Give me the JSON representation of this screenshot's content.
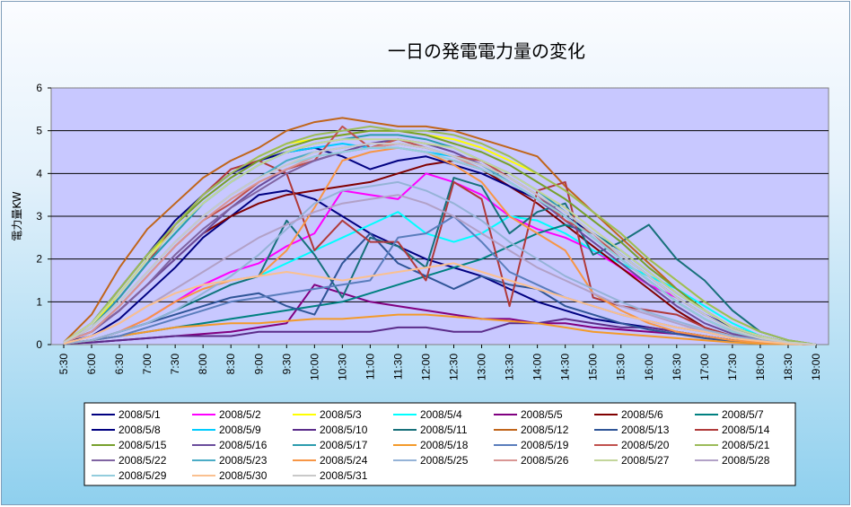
{
  "chart_data": {
    "type": "line",
    "title": "一日の発電電力量の変化",
    "ylabel": "電力量KW",
    "xlabel": "",
    "ylim": [
      0,
      6
    ],
    "yticks": [
      0,
      1,
      2,
      3,
      4,
      5,
      6
    ],
    "grid": true,
    "legend": "bottom",
    "x": [
      "5:30",
      "6:00",
      "6:30",
      "7:00",
      "7:30",
      "8:00",
      "8:30",
      "9:00",
      "9:30",
      "10:00",
      "10:30",
      "11:00",
      "11:30",
      "12:00",
      "12:30",
      "13:00",
      "13:30",
      "14:00",
      "14:30",
      "15:00",
      "15:30",
      "16:00",
      "16:30",
      "17:00",
      "17:30",
      "18:00",
      "18:30",
      "19:00"
    ],
    "series": [
      {
        "name": "2008/5/1",
        "color": "#000080",
        "values": [
          0.05,
          0.2,
          0.6,
          1.2,
          1.8,
          2.5,
          3.0,
          3.5,
          3.6,
          3.4,
          3.0,
          2.6,
          2.3,
          2.0,
          1.8,
          1.6,
          1.3,
          1.0,
          0.8,
          0.6,
          0.5,
          0.4,
          0.3,
          0.2,
          0.1,
          0.05,
          0.02,
          0
        ]
      },
      {
        "name": "2008/5/2",
        "color": "#ff00ff",
        "values": [
          0.02,
          0.1,
          0.3,
          0.6,
          1.0,
          1.4,
          1.7,
          1.9,
          2.3,
          2.6,
          3.6,
          3.5,
          3.4,
          4.0,
          3.8,
          3.5,
          3.0,
          2.7,
          2.5,
          2.2,
          1.8,
          1.4,
          1.1,
          0.7,
          0.4,
          0.2,
          0.05,
          0
        ]
      },
      {
        "name": "2008/5/3",
        "color": "#ffff00",
        "values": [
          0.05,
          0.4,
          1.2,
          2.0,
          2.8,
          3.5,
          4.0,
          4.4,
          4.7,
          4.8,
          4.9,
          5.0,
          5.0,
          4.9,
          4.8,
          4.6,
          4.3,
          4.0,
          3.6,
          3.1,
          2.6,
          2.0,
          1.5,
          1.0,
          0.6,
          0.3,
          0.1,
          0
        ]
      },
      {
        "name": "2008/5/4",
        "color": "#00ffff",
        "values": [
          0.02,
          0.1,
          0.3,
          0.5,
          0.8,
          1.1,
          1.4,
          1.6,
          1.9,
          2.2,
          2.5,
          2.8,
          3.1,
          2.6,
          2.4,
          2.6,
          3.0,
          2.9,
          2.6,
          2.2,
          1.9,
          1.6,
          1.3,
          0.9,
          0.5,
          0.2,
          0.05,
          0
        ]
      },
      {
        "name": "2008/5/5",
        "color": "#800080",
        "values": [
          0.02,
          0.05,
          0.1,
          0.15,
          0.2,
          0.25,
          0.3,
          0.4,
          0.5,
          1.4,
          1.2,
          1.0,
          0.9,
          0.8,
          0.7,
          0.6,
          0.6,
          0.5,
          0.5,
          0.4,
          0.35,
          0.3,
          0.25,
          0.2,
          0.1,
          0.05,
          0.02,
          0
        ]
      },
      {
        "name": "2008/5/6",
        "color": "#800000",
        "values": [
          0.05,
          0.3,
          0.8,
          1.4,
          2.0,
          2.6,
          3.0,
          3.3,
          3.5,
          3.6,
          3.7,
          3.8,
          4.0,
          4.2,
          4.3,
          4.1,
          3.7,
          3.3,
          2.8,
          2.3,
          1.8,
          1.3,
          0.8,
          0.4,
          0.2,
          0.1,
          0.02,
          0
        ]
      },
      {
        "name": "2008/5/7",
        "color": "#008080",
        "values": [
          0.02,
          0.1,
          0.2,
          0.3,
          0.4,
          0.5,
          0.6,
          0.7,
          0.8,
          0.9,
          1.0,
          1.2,
          1.4,
          1.6,
          1.8,
          2.0,
          2.3,
          2.6,
          2.8,
          2.6,
          2.2,
          1.7,
          1.2,
          0.8,
          0.4,
          0.2,
          0.05,
          0
        ]
      },
      {
        "name": "2008/5/8",
        "color": "#000080",
        "values": [
          0.05,
          0.5,
          1.3,
          2.1,
          2.9,
          3.5,
          4.0,
          4.3,
          4.5,
          4.6,
          4.4,
          4.1,
          4.3,
          4.4,
          4.2,
          4.0,
          3.7,
          3.4,
          3.0,
          2.6,
          2.1,
          1.6,
          1.1,
          0.7,
          0.4,
          0.2,
          0.05,
          0
        ]
      },
      {
        "name": "2008/5/9",
        "color": "#00ccff",
        "values": [
          0.05,
          0.4,
          1.1,
          1.9,
          2.6,
          3.3,
          3.8,
          4.2,
          4.5,
          4.6,
          4.7,
          4.6,
          4.6,
          4.5,
          4.4,
          4.1,
          3.8,
          3.4,
          3.0,
          2.5,
          2.0,
          1.5,
          1.0,
          0.6,
          0.3,
          0.15,
          0.05,
          0
        ]
      },
      {
        "name": "2008/5/10",
        "color": "#5b2c8a",
        "values": [
          0.02,
          0.05,
          0.1,
          0.15,
          0.2,
          0.2,
          0.2,
          0.3,
          0.3,
          0.3,
          0.3,
          0.3,
          0.4,
          0.4,
          0.3,
          0.3,
          0.5,
          0.5,
          0.6,
          0.5,
          0.4,
          0.4,
          0.3,
          0.2,
          0.1,
          0.05,
          0.02,
          0
        ]
      },
      {
        "name": "2008/5/11",
        "color": "#17707a",
        "values": [
          0.02,
          0.1,
          0.3,
          0.5,
          0.8,
          1.1,
          1.4,
          1.6,
          2.9,
          2.1,
          1.1,
          2.5,
          2.3,
          1.8,
          3.9,
          3.7,
          2.6,
          3.1,
          3.3,
          2.1,
          2.4,
          2.8,
          2.0,
          1.5,
          0.8,
          0.3,
          0.1,
          0
        ]
      },
      {
        "name": "2008/5/12",
        "color": "#c0651a",
        "values": [
          0.05,
          0.7,
          1.8,
          2.7,
          3.3,
          3.9,
          4.3,
          4.6,
          5.0,
          5.2,
          5.3,
          5.2,
          5.1,
          5.1,
          5.0,
          4.8,
          4.6,
          4.4,
          3.7,
          3.1,
          2.5,
          1.9,
          1.3,
          0.8,
          0.4,
          0.2,
          0.05,
          0
        ]
      },
      {
        "name": "2008/5/13",
        "color": "#2f5597",
        "values": [
          0.02,
          0.1,
          0.3,
          0.5,
          0.7,
          0.9,
          1.1,
          1.2,
          0.9,
          0.7,
          1.9,
          2.6,
          1.9,
          1.6,
          1.3,
          1.6,
          1.4,
          1.3,
          0.9,
          0.7,
          0.5,
          0.35,
          0.25,
          0.15,
          0.08,
          0.04,
          0.02,
          0
        ]
      },
      {
        "name": "2008/5/14",
        "color": "#b03a3a",
        "values": [
          0.05,
          0.4,
          1.1,
          1.9,
          2.8,
          3.5,
          4.1,
          4.3,
          4.0,
          2.2,
          2.9,
          2.4,
          2.4,
          1.5,
          3.8,
          3.4,
          0.9,
          3.6,
          3.8,
          1.1,
          0.9,
          0.8,
          0.7,
          0.4,
          0.2,
          0.1,
          0.02,
          0
        ]
      },
      {
        "name": "2008/5/15",
        "color": "#77a02c",
        "values": [
          0.05,
          0.5,
          1.3,
          2.1,
          2.8,
          3.4,
          3.9,
          4.3,
          4.6,
          4.8,
          4.9,
          5.0,
          5.0,
          4.9,
          4.7,
          4.5,
          4.2,
          3.8,
          3.4,
          2.9,
          2.4,
          1.8,
          1.3,
          0.8,
          0.4,
          0.2,
          0.05,
          0
        ]
      },
      {
        "name": "2008/5/16",
        "color": "#6a4c9c",
        "values": [
          0.05,
          0.3,
          0.8,
          1.4,
          2.0,
          2.6,
          3.2,
          3.7,
          4.1,
          4.3,
          4.5,
          4.7,
          4.8,
          4.7,
          4.5,
          4.2,
          3.8,
          3.4,
          2.9,
          2.4,
          1.9,
          1.4,
          0.9,
          0.5,
          0.25,
          0.1,
          0.02,
          0
        ]
      },
      {
        "name": "2008/5/17",
        "color": "#2b9cad",
        "values": [
          0.05,
          0.4,
          1.1,
          1.9,
          2.6,
          3.3,
          3.8,
          4.2,
          4.5,
          4.7,
          4.8,
          4.9,
          4.9,
          4.8,
          4.6,
          4.3,
          4.0,
          3.6,
          3.1,
          2.6,
          2.1,
          1.6,
          1.1,
          0.7,
          0.35,
          0.15,
          0.05,
          0
        ]
      },
      {
        "name": "2008/5/18",
        "color": "#f39a2a",
        "values": [
          0.02,
          0.1,
          0.2,
          0.3,
          0.4,
          0.45,
          0.5,
          0.5,
          0.55,
          0.6,
          0.6,
          0.65,
          0.7,
          0.7,
          0.65,
          0.6,
          0.55,
          0.5,
          0.4,
          0.3,
          0.25,
          0.2,
          0.15,
          0.1,
          0.05,
          0.02,
          0.01,
          0
        ]
      },
      {
        "name": "2008/5/19",
        "color": "#5a7dbc",
        "values": [
          0.02,
          0.1,
          0.2,
          0.4,
          0.6,
          0.8,
          1.0,
          1.1,
          1.2,
          1.3,
          1.4,
          1.5,
          2.5,
          2.6,
          3.0,
          2.4,
          1.7,
          1.4,
          1.1,
          0.9,
          0.7,
          0.55,
          0.4,
          0.3,
          0.15,
          0.08,
          0.02,
          0
        ]
      },
      {
        "name": "2008/5/20",
        "color": "#c0504d",
        "values": [
          0.05,
          0.3,
          0.9,
          1.6,
          2.3,
          2.9,
          3.3,
          3.8,
          4.1,
          4.3,
          5.1,
          4.6,
          4.8,
          4.6,
          4.4,
          4.3,
          3.9,
          3.5,
          2.9,
          2.6,
          2.0,
          1.5,
          1.0,
          0.6,
          0.3,
          0.1,
          0.02,
          0
        ]
      },
      {
        "name": "2008/5/21",
        "color": "#9bbb59",
        "values": [
          0.05,
          0.5,
          1.3,
          2.1,
          2.8,
          3.5,
          4.0,
          4.4,
          4.7,
          4.9,
          5.0,
          5.1,
          5.0,
          5.0,
          4.9,
          4.7,
          4.4,
          4.0,
          3.6,
          3.1,
          2.6,
          2.0,
          1.5,
          1.0,
          0.6,
          0.3,
          0.1,
          0
        ]
      },
      {
        "name": "2008/5/22",
        "color": "#8064a2",
        "values": [
          0.05,
          0.3,
          0.8,
          1.4,
          2.1,
          2.7,
          3.2,
          3.6,
          4.0,
          4.3,
          4.5,
          4.6,
          4.7,
          4.6,
          4.4,
          4.2,
          3.9,
          3.5,
          3.0,
          2.5,
          2.0,
          1.5,
          1.0,
          0.6,
          0.3,
          0.1,
          0.02,
          0
        ]
      },
      {
        "name": "2008/5/23",
        "color": "#4bacc6",
        "values": [
          0.05,
          0.4,
          1.0,
          1.7,
          2.4,
          3.0,
          3.5,
          3.9,
          4.3,
          4.5,
          4.6,
          4.7,
          4.7,
          4.6,
          4.4,
          4.2,
          3.8,
          3.4,
          3.0,
          2.5,
          2.0,
          1.5,
          1.0,
          0.6,
          0.3,
          0.15,
          0.05,
          0
        ]
      },
      {
        "name": "2008/5/24",
        "color": "#f79646",
        "values": [
          0.02,
          0.1,
          0.3,
          0.6,
          1.0,
          1.3,
          1.5,
          1.6,
          2.2,
          3.2,
          4.3,
          4.5,
          4.6,
          4.5,
          4.2,
          3.8,
          3.0,
          2.6,
          2.2,
          1.2,
          0.8,
          0.5,
          0.3,
          0.2,
          0.1,
          0.05,
          0.02,
          0
        ]
      },
      {
        "name": "2008/5/25",
        "color": "#95b3d7",
        "values": [
          0.02,
          0.1,
          0.3,
          0.5,
          0.8,
          1.2,
          1.6,
          2.1,
          2.7,
          3.3,
          3.6,
          3.7,
          3.8,
          3.6,
          3.3,
          2.9,
          2.4,
          2.0,
          1.6,
          1.3,
          1.0,
          0.75,
          0.55,
          0.35,
          0.2,
          0.1,
          0.03,
          0
        ]
      },
      {
        "name": "2008/5/26",
        "color": "#d99694",
        "values": [
          0.05,
          0.3,
          0.9,
          1.6,
          2.3,
          2.9,
          3.4,
          3.8,
          4.1,
          4.4,
          4.5,
          4.6,
          4.7,
          4.6,
          4.4,
          4.1,
          3.8,
          3.4,
          3.0,
          2.5,
          2.0,
          1.5,
          1.0,
          0.6,
          0.3,
          0.15,
          0.05,
          0
        ]
      },
      {
        "name": "2008/5/27",
        "color": "#c3d69b",
        "values": [
          0.05,
          0.5,
          1.2,
          2.0,
          2.7,
          3.3,
          3.8,
          4.2,
          4.5,
          4.7,
          4.8,
          4.8,
          4.8,
          4.7,
          4.6,
          4.3,
          4.0,
          3.6,
          3.2,
          2.7,
          2.2,
          1.7,
          1.2,
          0.8,
          0.4,
          0.2,
          0.05,
          0
        ]
      },
      {
        "name": "2008/5/28",
        "color": "#b2a1c7",
        "values": [
          0.02,
          0.2,
          0.5,
          0.9,
          1.3,
          1.7,
          2.1,
          2.5,
          2.8,
          3.1,
          3.3,
          3.4,
          3.5,
          3.3,
          3.0,
          2.6,
          2.2,
          1.8,
          1.5,
          1.2,
          0.9,
          0.7,
          0.5,
          0.3,
          0.15,
          0.08,
          0.02,
          0
        ]
      },
      {
        "name": "2008/5/29",
        "color": "#93cddd",
        "values": [
          0.05,
          0.4,
          1.0,
          1.7,
          2.4,
          3.0,
          3.5,
          3.9,
          4.2,
          4.4,
          4.5,
          4.6,
          4.6,
          4.5,
          4.3,
          4.1,
          3.8,
          3.4,
          3.0,
          2.5,
          2.0,
          1.5,
          1.0,
          0.6,
          0.3,
          0.15,
          0.05,
          0
        ]
      },
      {
        "name": "2008/5/30",
        "color": "#fac090",
        "values": [
          0.02,
          0.2,
          0.5,
          0.9,
          1.2,
          1.4,
          1.5,
          1.6,
          1.7,
          1.6,
          1.5,
          1.6,
          1.7,
          1.8,
          1.9,
          1.7,
          1.5,
          1.3,
          1.1,
          0.9,
          0.7,
          0.55,
          0.4,
          0.3,
          0.15,
          0.08,
          0.02,
          0
        ]
      },
      {
        "name": "2008/5/31",
        "color": "#c9c9c9",
        "values": [
          0.05,
          0.4,
          1.0,
          1.7,
          2.4,
          3.0,
          3.5,
          3.9,
          4.2,
          4.5,
          4.6,
          4.7,
          4.7,
          4.6,
          4.4,
          4.2,
          3.9,
          3.5,
          3.1,
          2.6,
          2.1,
          1.6,
          1.1,
          0.7,
          0.35,
          0.15,
          0.05,
          0
        ]
      }
    ]
  }
}
